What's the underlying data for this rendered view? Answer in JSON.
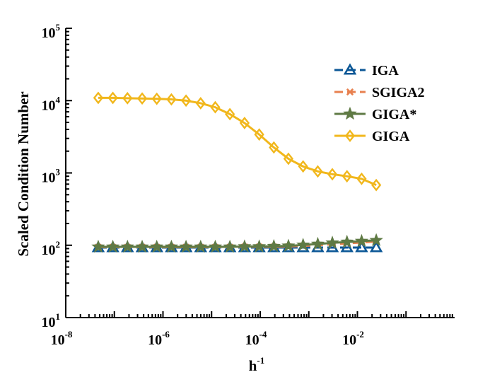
{
  "chart_data": {
    "type": "line",
    "xscale": "log",
    "yscale": "log",
    "xlim": [
      1e-08,
      1
    ],
    "ylim": [
      10,
      100000
    ],
    "xlabel_base": "h",
    "xlabel_exp": "-1",
    "ylabel": "Scaled Condition Number",
    "legend_position": "top-right",
    "x_ticks": [
      {
        "base": "10",
        "exp": "-8",
        "value": 1e-08
      },
      {
        "base": "10",
        "exp": "-6",
        "value": 1e-06
      },
      {
        "base": "10",
        "exp": "-4",
        "value": 0.0001
      },
      {
        "base": "10",
        "exp": "-2",
        "value": 0.01
      }
    ],
    "y_ticks": [
      {
        "base": "10",
        "exp": "1",
        "value": 10
      },
      {
        "base": "10",
        "exp": "2",
        "value": 100
      },
      {
        "base": "10",
        "exp": "3",
        "value": 1000
      },
      {
        "base": "10",
        "exp": "4",
        "value": 10000
      },
      {
        "base": "10",
        "exp": "5",
        "value": 100000
      }
    ],
    "x": [
      4.66e-08,
      9.31e-08,
      1.86e-07,
      3.73e-07,
      7.45e-07,
      1.49e-06,
      2.98e-06,
      5.96e-06,
      1.19e-05,
      2.38e-05,
      4.77e-05,
      9.54e-05,
      0.000191,
      0.000381,
      0.000763,
      0.00153,
      0.00305,
      0.0061,
      0.0122,
      0.0244
    ],
    "series": [
      {
        "name": "IGA",
        "color": "#0b5796",
        "marker": "triangle",
        "dash": "dashed",
        "values": [
          93,
          93,
          93,
          93,
          93,
          93,
          93,
          93,
          93,
          93,
          93,
          93,
          93,
          93,
          93,
          93,
          93,
          93,
          93,
          93
        ]
      },
      {
        "name": "SGIGA2",
        "color": "#e8804f",
        "marker": "x",
        "dash": "dashed",
        "values": [
          94,
          94,
          94,
          94,
          94,
          94,
          94,
          94,
          94,
          94,
          95,
          95,
          95,
          96,
          98,
          100,
          103,
          106,
          109,
          113
        ]
      },
      {
        "name": "GIGA*",
        "color": "#5f7a44",
        "marker": "star",
        "dash": "solid",
        "values": [
          95,
          95,
          95,
          95,
          95,
          95,
          95,
          95,
          95,
          95,
          96,
          96,
          97,
          98,
          101,
          104,
          108,
          111,
          114,
          117
        ]
      },
      {
        "name": "GIGA",
        "color": "#f1b71c",
        "marker": "diamond",
        "dash": "solid",
        "values": [
          10900,
          10900,
          10800,
          10700,
          10600,
          10400,
          10000,
          9200,
          8100,
          6500,
          4900,
          3400,
          2250,
          1570,
          1230,
          1050,
          960,
          900,
          830,
          680
        ]
      }
    ]
  }
}
